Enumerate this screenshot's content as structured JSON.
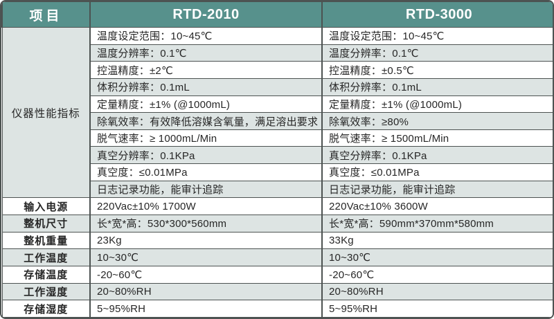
{
  "table": {
    "header": {
      "item_col": "项目",
      "rtd2010_col": "RTD-2010",
      "rtd3000_col": "RTD-3000"
    },
    "performance_group_label": "仪器性能指标",
    "performance_rows": [
      {
        "rtd2010": "温度设定范围：10~45℃",
        "rtd3000": "温度设定范围：10~45℃"
      },
      {
        "rtd2010": "温度分辨率：0.1℃",
        "rtd3000": "温度分辨率：0.1℃"
      },
      {
        "rtd2010": "控温精度：±2℃",
        "rtd3000": "控温精度：±0.5℃"
      },
      {
        "rtd2010": "体积分辨率：0.1mL",
        "rtd3000": "体积分辨率：0.1mL"
      },
      {
        "rtd2010": "定量精度：±1% (@1000mL)",
        "rtd3000": "定量精度：±1% (@1000mL)"
      },
      {
        "rtd2010": "除氧效率：有效降低溶媒含氧量，满足溶出要求",
        "rtd3000": "除氧效率：≥80%"
      },
      {
        "rtd2010": "脱气速率：≥ 1000mL/Min",
        "rtd3000": "脱气速率：≥ 1500mL/Min"
      },
      {
        "rtd2010": "真空分辨率：0.1KPa",
        "rtd3000": "真空分辨率：0.1KPa"
      },
      {
        "rtd2010": "真空度：≤0.01MPa",
        "rtd3000": "真空度：≤0.01MPa"
      },
      {
        "rtd2010": "日志记录功能，能审计追踪",
        "rtd3000": "日志记录功能，能审计追踪"
      }
    ],
    "spec_rows": [
      {
        "label": "输入电源",
        "rtd2010": "220Vac±10% 1700W",
        "rtd3000": "220Vac±10% 3600W"
      },
      {
        "label": "整机尺寸",
        "rtd2010": "长*宽*高：530*300*560mm",
        "rtd3000": "长*宽*高：590mm*370mm*580mm"
      },
      {
        "label": "整机重量",
        "rtd2010": "23Kg",
        "rtd3000": "33Kg"
      },
      {
        "label": "工作温度",
        "rtd2010": "10~30℃",
        "rtd3000": "10~30℃"
      },
      {
        "label": "存储温度",
        "rtd2010": "-20~60℃",
        "rtd3000": "-20~60℃"
      },
      {
        "label": "工作湿度",
        "rtd2010": "20~80%RH",
        "rtd3000": "20~80%RH"
      },
      {
        "label": "存储湿度",
        "rtd2010": "5~95%RH",
        "rtd3000": "5~95%RH"
      }
    ]
  },
  "colors": {
    "header_teal": "#57918c",
    "stripe": "#dde4e3",
    "border": "#4c5251",
    "header_text": "#ffffff",
    "body_text": "#262626"
  }
}
